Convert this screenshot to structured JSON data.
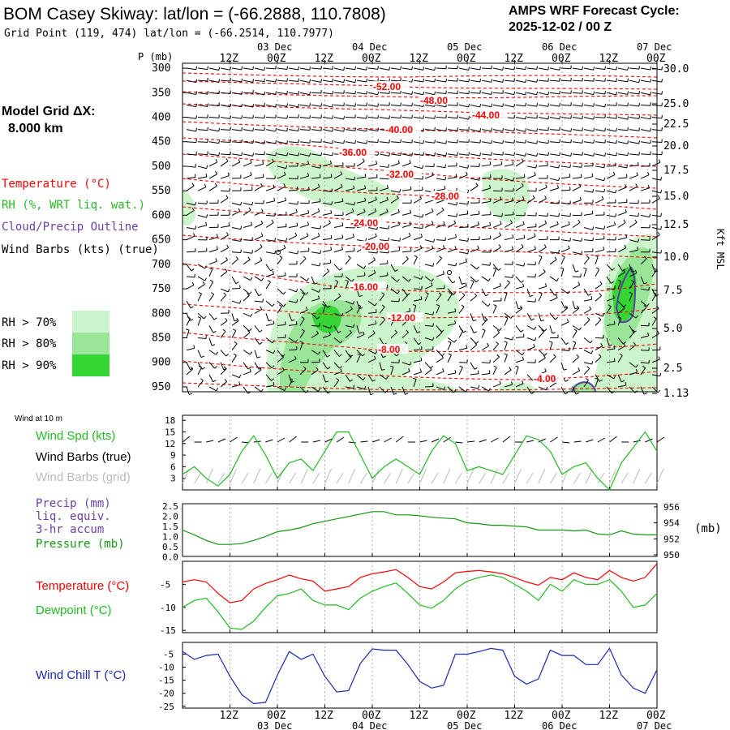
{
  "header": {
    "title": "BOM Casey Skiway:  lat/lon = (-66.2888, 110.7808)",
    "grid_point": "Grid Point (119, 474) lat/lon = (-66.2514, 110.7977)",
    "cycle_label": "AMPS WRF Forecast Cycle:",
    "cycle_value": "2025-12-02 / 00  Z"
  },
  "model_grid": {
    "label": "Model Grid ΔX:",
    "value": "8.000 km"
  },
  "legend": {
    "temperature": "Temperature (°C)",
    "rh": "RH (%, WRT liq. wat.)",
    "cloud": "Cloud/Precip Outline",
    "barbs": "Wind Barbs (kts) (true)",
    "rh_levels": [
      "RH > 70%",
      "RH > 80%",
      "RH > 90%"
    ]
  },
  "colors": {
    "temperature": "#ff0000",
    "rh_70": "#ccf5cc",
    "rh_80": "#99e699",
    "rh_90": "#33d633",
    "cloud": "#5a3ea0",
    "wind_speed": "#22bb22",
    "pressure": "#119911",
    "dewpoint": "#22bb22",
    "wind_chill": "#1a2ab0",
    "grid_barbs": "#bbbbbb"
  },
  "time_axis": {
    "top_labels": [
      "12Z",
      "00Z",
      "12Z",
      "00Z",
      "12Z",
      "00Z",
      "12Z",
      "00Z",
      "12Z",
      "00Z"
    ],
    "date_labels": [
      "03 Dec",
      "04 Dec",
      "05 Dec",
      "06 Dec",
      "07 Dec"
    ]
  },
  "upper_panel": {
    "p_label": "P (mb)",
    "kft_label": "Kft MSL",
    "pressure_levels": [
      "300",
      "350",
      "400",
      "450",
      "500",
      "550",
      "600",
      "650",
      "700",
      "750",
      "800",
      "850",
      "900",
      "950"
    ],
    "kft_ticks": [
      "30.0",
      "25.0",
      "22.5",
      "20.0",
      "17.5",
      "15.0",
      "12.5",
      "10.0",
      "7.5",
      "5.0",
      "2.5",
      "1.13"
    ],
    "isotherm_labels": [
      "-52.00",
      "-48.00",
      "-44.00",
      "-40.00",
      "-36.00",
      "-32.00",
      "-28.00",
      "-24.00",
      "-20.00",
      "-16.00",
      "-12.00",
      "-8.00",
      "-4.00"
    ]
  },
  "wind_panel": {
    "caption": "Wind at 10 m",
    "series_labels": [
      "Wind Spd (kts)",
      "Wind Barbs (true)",
      "Wind Barbs (grid)"
    ],
    "y_ticks": [
      "18",
      "15",
      "12",
      "9",
      "6",
      "3"
    ]
  },
  "precip_panel": {
    "labels": [
      "Precip (mm)",
      "liq. equiv.",
      "3-hr accum",
      "Pressure (mb)"
    ],
    "left_ticks": [
      "2.5",
      "2.0",
      "1.5",
      "1.0",
      "0.5",
      "0.0"
    ],
    "right_ticks": [
      "956",
      "954",
      "952",
      "950"
    ],
    "right_unit": "(mb)"
  },
  "temp_panel": {
    "temp_label": "Temperature (°C)",
    "dew_label": "Dewpoint (°C)",
    "y_ticks": [
      "-5",
      "-10",
      "-15"
    ]
  },
  "chill_panel": {
    "label": "Wind Chill T (°C)",
    "y_ticks": [
      "-5",
      "-10",
      "-15",
      "-20",
      "-25"
    ]
  },
  "chart_data": [
    {
      "type": "line",
      "title": "Wind at 10 m",
      "x_hours": [
        0,
        3,
        6,
        9,
        12,
        15,
        18,
        21,
        24,
        27,
        30,
        33,
        36,
        39,
        42,
        45,
        48,
        51,
        54,
        57,
        60,
        63,
        66,
        69,
        72,
        75,
        78,
        81,
        84,
        87,
        90,
        93,
        96,
        99,
        102,
        105,
        108,
        111,
        114,
        117,
        120
      ],
      "series": [
        {
          "name": "Wind Spd (kts)",
          "values": [
            4,
            6,
            3,
            1,
            4,
            10,
            14,
            9,
            3,
            7,
            8,
            5,
            10,
            15,
            15,
            9,
            3,
            6,
            8,
            6,
            4,
            10,
            14,
            12,
            5,
            6,
            5,
            4,
            9,
            14,
            13,
            10,
            4,
            6,
            7,
            3,
            0,
            7,
            11,
            15,
            10
          ]
        }
      ],
      "ylim": [
        0,
        18
      ]
    },
    {
      "type": "line",
      "title": "Pressure (mb)",
      "x_hours": [
        0,
        3,
        6,
        9,
        12,
        15,
        18,
        21,
        24,
        27,
        30,
        33,
        36,
        39,
        42,
        45,
        48,
        51,
        54,
        57,
        60,
        63,
        66,
        69,
        72,
        75,
        78,
        81,
        84,
        87,
        90,
        93,
        96,
        99,
        102,
        105,
        108,
        111,
        114,
        117,
        120
      ],
      "series": [
        {
          "name": "Pressure (mb)",
          "values": [
            953.1,
            952.5,
            951.8,
            951.3,
            951.3,
            951.4,
            951.8,
            952.3,
            952.9,
            953.1,
            953.4,
            953.9,
            954.2,
            954.5,
            954.8,
            955.1,
            955.4,
            955.4,
            955.0,
            955.0,
            954.9,
            954.7,
            954.6,
            954.5,
            954.0,
            953.9,
            953.7,
            953.7,
            953.6,
            953.5,
            953.1,
            953.1,
            953.1,
            953.0,
            953.1,
            952.6,
            952.5,
            953.0,
            952.6,
            952.5,
            952.5
          ]
        }
      ],
      "ylim": [
        950,
        956
      ]
    },
    {
      "type": "line",
      "title": "Temperature / Dewpoint (°C)",
      "x_hours": [
        0,
        3,
        6,
        9,
        12,
        15,
        18,
        21,
        24,
        27,
        30,
        33,
        36,
        39,
        42,
        45,
        48,
        51,
        54,
        57,
        60,
        63,
        66,
        69,
        72,
        75,
        78,
        81,
        84,
        87,
        90,
        93,
        96,
        99,
        102,
        105,
        108,
        111,
        114,
        117,
        120
      ],
      "series": [
        {
          "name": "Temperature (°C)",
          "values": [
            -4.5,
            -4.0,
            -4.5,
            -7.0,
            -9.0,
            -8.5,
            -6.0,
            -4.8,
            -4.0,
            -3.0,
            -3.8,
            -4.3,
            -6.5,
            -6.0,
            -5.5,
            -3.5,
            -2.7,
            -2.3,
            -1.8,
            -3.5,
            -5.5,
            -6.0,
            -4.5,
            -2.5,
            -2.2,
            -2.0,
            -2.3,
            -2.7,
            -3.5,
            -4.5,
            -5.2,
            -3.5,
            -4.0,
            -2.5,
            -3.5,
            -4.0,
            -2.0,
            -3.5,
            -4.3,
            -3.5,
            -0.5
          ]
        },
        {
          "name": "Dewpoint (°C)",
          "values": [
            -10.0,
            -8.5,
            -8.0,
            -11.0,
            -14.5,
            -14.8,
            -13.0,
            -10.0,
            -7.5,
            -7.0,
            -6.0,
            -8.5,
            -9.5,
            -9.5,
            -10.5,
            -8.0,
            -6.5,
            -5.5,
            -4.7,
            -7.0,
            -9.5,
            -10.2,
            -8.5,
            -6.0,
            -4.3,
            -3.5,
            -3.0,
            -3.5,
            -5.0,
            -6.5,
            -8.5,
            -5.0,
            -6.5,
            -4.0,
            -5.0,
            -5.0,
            -4.0,
            -6.5,
            -10.0,
            -9.5,
            -7.0
          ]
        }
      ],
      "ylim": [
        -15,
        0
      ]
    },
    {
      "type": "line",
      "title": "Wind Chill T (°C)",
      "x_hours": [
        0,
        3,
        6,
        9,
        12,
        15,
        18,
        21,
        24,
        27,
        30,
        33,
        36,
        39,
        42,
        45,
        48,
        51,
        54,
        57,
        60,
        63,
        66,
        69,
        72,
        75,
        78,
        81,
        84,
        87,
        90,
        93,
        96,
        99,
        102,
        105,
        108,
        111,
        114,
        117,
        120
      ],
      "series": [
        {
          "name": "Wind Chill T (°C)",
          "values": [
            -4.0,
            -7.0,
            -5.5,
            -5.0,
            -13.5,
            -20.5,
            -24.0,
            -23.5,
            -13.0,
            -4.0,
            -7.0,
            -5.0,
            -13.5,
            -19.5,
            -19.0,
            -8.5,
            -3.0,
            -3.5,
            -3.5,
            -9.0,
            -15.5,
            -18.0,
            -17.0,
            -5.0,
            -5.0,
            -4.0,
            -2.8,
            -3.5,
            -13.5,
            -16.5,
            -14.5,
            -3.5,
            -5.5,
            -5.5,
            -9.0,
            -9.0,
            -2.8,
            -13.0,
            -18.0,
            -20.0,
            -11.0
          ]
        }
      ],
      "ylim": [
        -25,
        0
      ]
    }
  ]
}
